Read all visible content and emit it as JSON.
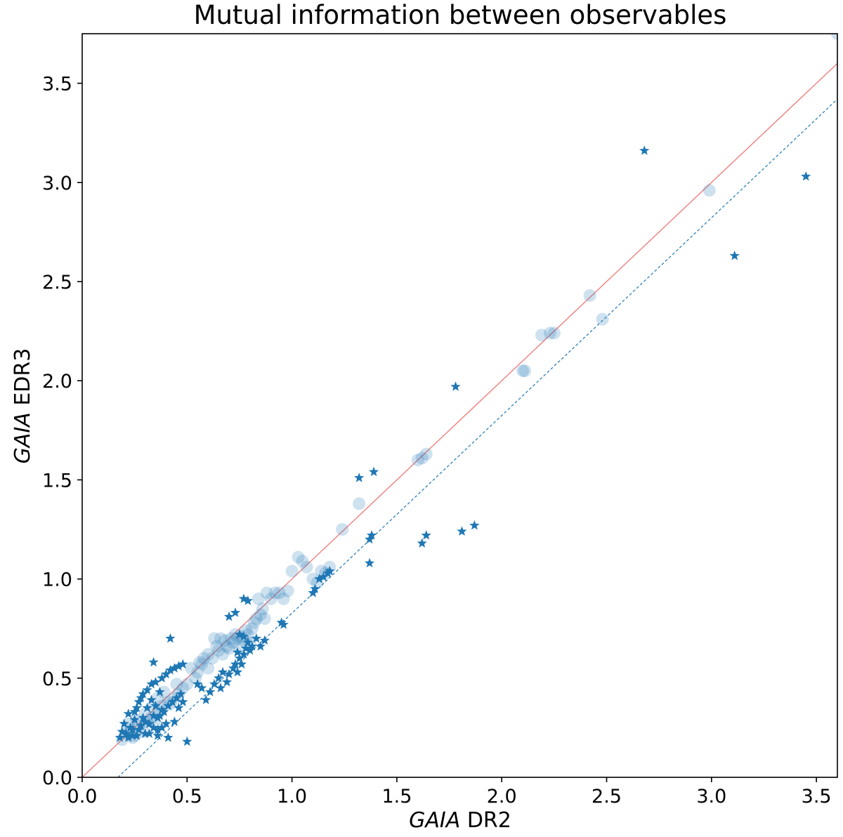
{
  "chart_data": {
    "type": "scatter",
    "title": "Mutual information between observables",
    "xlabel": {
      "italic": "GAIA",
      "rest": " DR2"
    },
    "ylabel": {
      "italic": "GAIA",
      "rest": " EDR3"
    },
    "xlim": [
      0.0,
      3.6
    ],
    "ylim": [
      0.0,
      3.75
    ],
    "xticks": [
      0.0,
      0.5,
      1.0,
      1.5,
      2.0,
      2.5,
      3.0,
      3.5
    ],
    "yticks": [
      0.0,
      0.5,
      1.0,
      1.5,
      2.0,
      2.5,
      3.0,
      3.5
    ],
    "xtick_labels": [
      "0.0",
      "0.5",
      "1.0",
      "1.5",
      "2.0",
      "2.5",
      "3.0",
      "3.5"
    ],
    "ytick_labels": [
      "0.0",
      "0.5",
      "1.0",
      "1.5",
      "2.0",
      "2.5",
      "3.0",
      "3.5"
    ],
    "grid": false,
    "colors": {
      "marker": "#1f77b4",
      "identity_line": "#f08080",
      "fit_line": "#1f77b4"
    },
    "lines": [
      {
        "kind": "identity",
        "style": "solid",
        "x": [
          0.0,
          3.6
        ],
        "y": [
          0.0,
          3.6
        ]
      },
      {
        "kind": "offset",
        "style": "dashed",
        "x": [
          0.17,
          3.6
        ],
        "y": [
          0.0,
          3.42
        ]
      }
    ],
    "series": [
      {
        "marker": "circle",
        "alpha": 0.22,
        "points": [
          [
            0.19,
            0.19
          ],
          [
            0.21,
            0.22
          ],
          [
            0.23,
            0.24
          ],
          [
            0.25,
            0.21
          ],
          [
            0.27,
            0.26
          ],
          [
            0.29,
            0.23
          ],
          [
            0.31,
            0.28
          ],
          [
            0.33,
            0.3
          ],
          [
            0.35,
            0.27
          ],
          [
            0.37,
            0.33
          ],
          [
            0.22,
            0.27
          ],
          [
            0.24,
            0.2
          ],
          [
            0.26,
            0.29
          ],
          [
            0.3,
            0.32
          ],
          [
            0.34,
            0.35
          ],
          [
            0.38,
            0.36
          ],
          [
            0.41,
            0.38
          ],
          [
            0.44,
            0.4
          ],
          [
            0.46,
            0.42
          ],
          [
            0.48,
            0.45
          ],
          [
            0.5,
            0.47
          ],
          [
            0.52,
            0.55
          ],
          [
            0.54,
            0.5
          ],
          [
            0.56,
            0.58
          ],
          [
            0.58,
            0.6
          ],
          [
            0.6,
            0.62
          ],
          [
            0.62,
            0.6
          ],
          [
            0.64,
            0.66
          ],
          [
            0.66,
            0.7
          ],
          [
            0.68,
            0.69
          ],
          [
            0.7,
            0.65
          ],
          [
            0.71,
            0.7
          ],
          [
            0.72,
            0.68
          ],
          [
            0.73,
            0.72
          ],
          [
            0.74,
            0.7
          ],
          [
            0.75,
            0.66
          ],
          [
            0.76,
            0.71
          ],
          [
            0.77,
            0.69
          ],
          [
            0.78,
            0.74
          ],
          [
            0.79,
            0.72
          ],
          [
            0.8,
            0.68
          ],
          [
            0.81,
            0.75
          ],
          [
            0.82,
            0.78
          ],
          [
            0.83,
            0.8
          ],
          [
            0.84,
            0.9
          ],
          [
            0.85,
            0.82
          ],
          [
            0.86,
            0.85
          ],
          [
            0.87,
            0.8
          ],
          [
            0.88,
            0.93
          ],
          [
            0.9,
            0.9
          ],
          [
            0.92,
            0.93
          ],
          [
            0.94,
            0.93
          ],
          [
            0.96,
            0.9
          ],
          [
            0.98,
            0.94
          ],
          [
            1.0,
            1.04
          ],
          [
            1.03,
            1.11
          ],
          [
            1.05,
            1.09
          ],
          [
            1.07,
            1.06
          ],
          [
            1.1,
            1.0
          ],
          [
            1.12,
            0.98
          ],
          [
            1.14,
            1.04
          ],
          [
            1.16,
            1.03
          ],
          [
            1.18,
            1.06
          ],
          [
            0.63,
            0.7
          ],
          [
            0.65,
            0.64
          ],
          [
            0.67,
            0.62
          ],
          [
            0.69,
            0.66
          ],
          [
            0.6,
            0.55
          ],
          [
            0.57,
            0.57
          ],
          [
            0.55,
            0.53
          ],
          [
            0.36,
            0.4
          ],
          [
            0.39,
            0.43
          ],
          [
            0.42,
            0.37
          ],
          [
            0.45,
            0.47
          ],
          [
            1.24,
            1.25
          ],
          [
            1.32,
            1.38
          ],
          [
            1.6,
            1.6
          ],
          [
            1.62,
            1.61
          ],
          [
            1.64,
            1.63
          ],
          [
            2.1,
            2.05
          ],
          [
            2.11,
            2.05
          ],
          [
            2.19,
            2.23
          ],
          [
            2.23,
            2.24
          ],
          [
            2.25,
            2.24
          ],
          [
            2.42,
            2.43
          ],
          [
            2.48,
            2.31
          ],
          [
            2.99,
            2.96
          ],
          [
            3.6,
            3.75
          ]
        ]
      },
      {
        "marker": "star",
        "alpha": 1.0,
        "points": [
          [
            0.18,
            0.2
          ],
          [
            0.19,
            0.23
          ],
          [
            0.2,
            0.27
          ],
          [
            0.21,
            0.22
          ],
          [
            0.22,
            0.32
          ],
          [
            0.23,
            0.25
          ],
          [
            0.24,
            0.21
          ],
          [
            0.25,
            0.29
          ],
          [
            0.26,
            0.35
          ],
          [
            0.27,
            0.24
          ],
          [
            0.28,
            0.4
          ],
          [
            0.29,
            0.3
          ],
          [
            0.3,
            0.22
          ],
          [
            0.31,
            0.44
          ],
          [
            0.32,
            0.27
          ],
          [
            0.33,
            0.47
          ],
          [
            0.34,
            0.25
          ],
          [
            0.35,
            0.48
          ],
          [
            0.36,
            0.3
          ],
          [
            0.37,
            0.43
          ],
          [
            0.38,
            0.5
          ],
          [
            0.39,
            0.33
          ],
          [
            0.4,
            0.52
          ],
          [
            0.41,
            0.36
          ],
          [
            0.42,
            0.54
          ],
          [
            0.43,
            0.38
          ],
          [
            0.44,
            0.55
          ],
          [
            0.45,
            0.4
          ],
          [
            0.46,
            0.56
          ],
          [
            0.47,
            0.42
          ],
          [
            0.48,
            0.57
          ],
          [
            0.22,
            0.2
          ],
          [
            0.24,
            0.24
          ],
          [
            0.26,
            0.21
          ],
          [
            0.28,
            0.26
          ],
          [
            0.3,
            0.28
          ],
          [
            0.32,
            0.22
          ],
          [
            0.34,
            0.31
          ],
          [
            0.36,
            0.24
          ],
          [
            0.38,
            0.34
          ],
          [
            0.4,
            0.27
          ],
          [
            0.25,
            0.33
          ],
          [
            0.27,
            0.38
          ],
          [
            0.29,
            0.42
          ],
          [
            0.31,
            0.35
          ],
          [
            0.33,
            0.39
          ],
          [
            0.35,
            0.36
          ],
          [
            0.37,
            0.31
          ],
          [
            0.34,
            0.58
          ],
          [
            0.42,
            0.7
          ],
          [
            0.38,
            0.25
          ],
          [
            0.44,
            0.28
          ],
          [
            0.46,
            0.35
          ],
          [
            0.48,
            0.38
          ],
          [
            0.5,
            0.18
          ],
          [
            0.36,
            0.21
          ],
          [
            0.41,
            0.2
          ],
          [
            0.55,
            0.47
          ],
          [
            0.57,
            0.45
          ],
          [
            0.59,
            0.39
          ],
          [
            0.61,
            0.43
          ],
          [
            0.63,
            0.47
          ],
          [
            0.65,
            0.5
          ],
          [
            0.66,
            0.45
          ],
          [
            0.67,
            0.53
          ],
          [
            0.69,
            0.48
          ],
          [
            0.7,
            0.52
          ],
          [
            0.72,
            0.55
          ],
          [
            0.73,
            0.57
          ],
          [
            0.74,
            0.53
          ],
          [
            0.75,
            0.6
          ],
          [
            0.76,
            0.57
          ],
          [
            0.77,
            0.62
          ],
          [
            0.78,
            0.65
          ],
          [
            0.79,
            0.68
          ],
          [
            0.8,
            0.64
          ],
          [
            0.81,
            0.66
          ],
          [
            0.74,
            0.63
          ],
          [
            0.7,
            0.81
          ],
          [
            0.73,
            0.83
          ],
          [
            0.77,
            0.9
          ],
          [
            0.79,
            0.89
          ],
          [
            0.75,
            0.72
          ],
          [
            0.77,
            0.71
          ],
          [
            0.83,
            0.7
          ],
          [
            0.85,
            0.66
          ],
          [
            0.87,
            0.69
          ],
          [
            0.95,
            0.78
          ],
          [
            0.96,
            0.77
          ],
          [
            1.1,
            0.93
          ],
          [
            1.11,
            0.95
          ],
          [
            1.13,
            1.0
          ],
          [
            1.15,
            1.01
          ],
          [
            1.17,
            1.03
          ],
          [
            1.18,
            1.04
          ],
          [
            1.32,
            1.51
          ],
          [
            1.39,
            1.54
          ],
          [
            1.37,
            1.2
          ],
          [
            1.38,
            1.22
          ],
          [
            1.37,
            1.08
          ],
          [
            1.62,
            1.18
          ],
          [
            1.64,
            1.22
          ],
          [
            1.81,
            1.24
          ],
          [
            1.87,
            1.27
          ],
          [
            1.78,
            1.97
          ],
          [
            2.68,
            3.16
          ],
          [
            3.45,
            3.03
          ],
          [
            3.11,
            2.63
          ]
        ]
      }
    ]
  }
}
